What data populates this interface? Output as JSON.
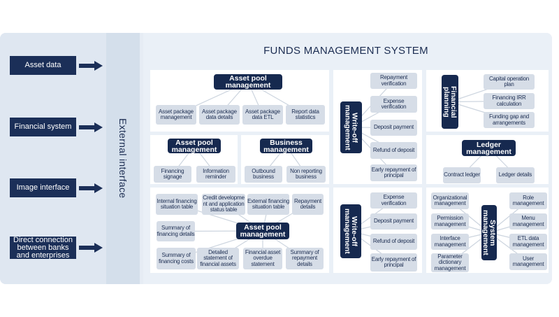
{
  "title": "FUNDS MANAGEMENT SYSTEM",
  "external_interface": "External interface",
  "left_sources": [
    "Asset data",
    "Financial system",
    "Image interface",
    "Direct connection between banks and enterprises"
  ],
  "colors": {
    "header": "#16294f",
    "item": "#d6dde7",
    "background": "#e6ecf4"
  },
  "modules": [
    {
      "header": "Asset pool management",
      "items": [
        "Asset package management",
        "Asset package data details",
        "Asset package data ETL",
        "Report data statistics"
      ]
    },
    {
      "header": "Asset pool management",
      "items": [
        "Financing signage",
        "Information reminder"
      ]
    },
    {
      "header": "Business management",
      "items": [
        "Outbound business",
        "Non reporting business"
      ]
    },
    {
      "header": "Asset pool management",
      "items": [
        "Internal financing situation table",
        "Credit developme nt and application status table",
        "External financing situation table",
        "Repayment details",
        "Summary of financing details",
        "Summary of financing costs",
        "Detailed statement of financial assets",
        "Financial asset overdue statement",
        "Summary of repayment details"
      ]
    },
    {
      "header": "Write-off management",
      "items": [
        "Repayment verification",
        "Expense verification",
        "Deposit payment",
        "Refund of deposit",
        "Early repayment of principal"
      ]
    },
    {
      "header": "Financial planning",
      "items": [
        "Capital operation plan",
        "Financing IRR calculation",
        "Funding gap and arrangements"
      ]
    },
    {
      "header": "Ledger management",
      "items": [
        "Contract ledger",
        "Ledger details"
      ]
    },
    {
      "header": "Write-off management",
      "items": [
        "Expense verification",
        "Deposit payment",
        "Refund of deposit",
        "Early repayment of principal"
      ]
    },
    {
      "header": "System management",
      "items": [
        "Organizational management",
        "Permission management",
        "Interface management",
        "Parameter dictionary management",
        "Role management",
        "Menu management",
        "ETL data management",
        "User management"
      ]
    }
  ]
}
